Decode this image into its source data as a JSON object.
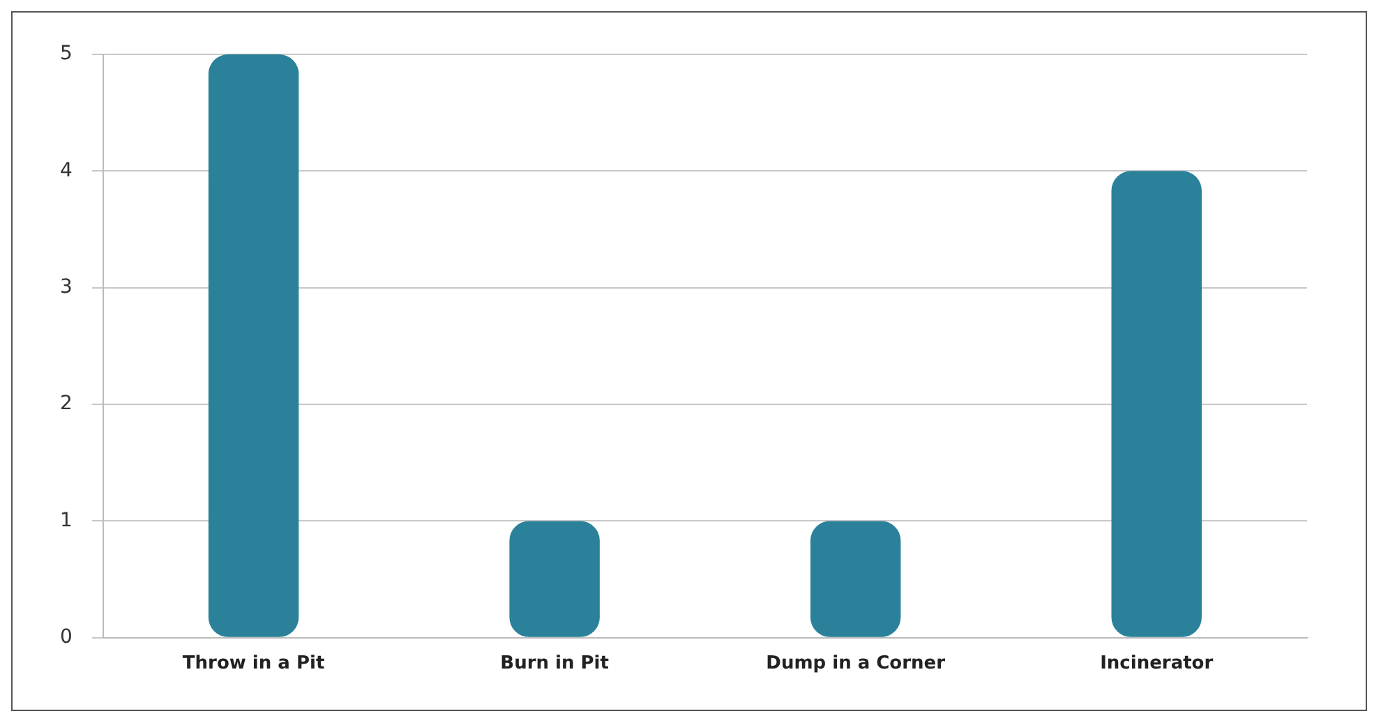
{
  "chart_data": {
    "type": "bar",
    "categories": [
      "Throw in a Pit",
      "Burn in Pit",
      "Dump in a Corner",
      "Incinerator"
    ],
    "values": [
      5,
      1,
      1,
      4
    ],
    "color": "#2b8199",
    "ylim": [
      0,
      5
    ],
    "yticks": [
      0,
      1,
      2,
      3,
      4,
      5
    ],
    "grid": "y"
  }
}
